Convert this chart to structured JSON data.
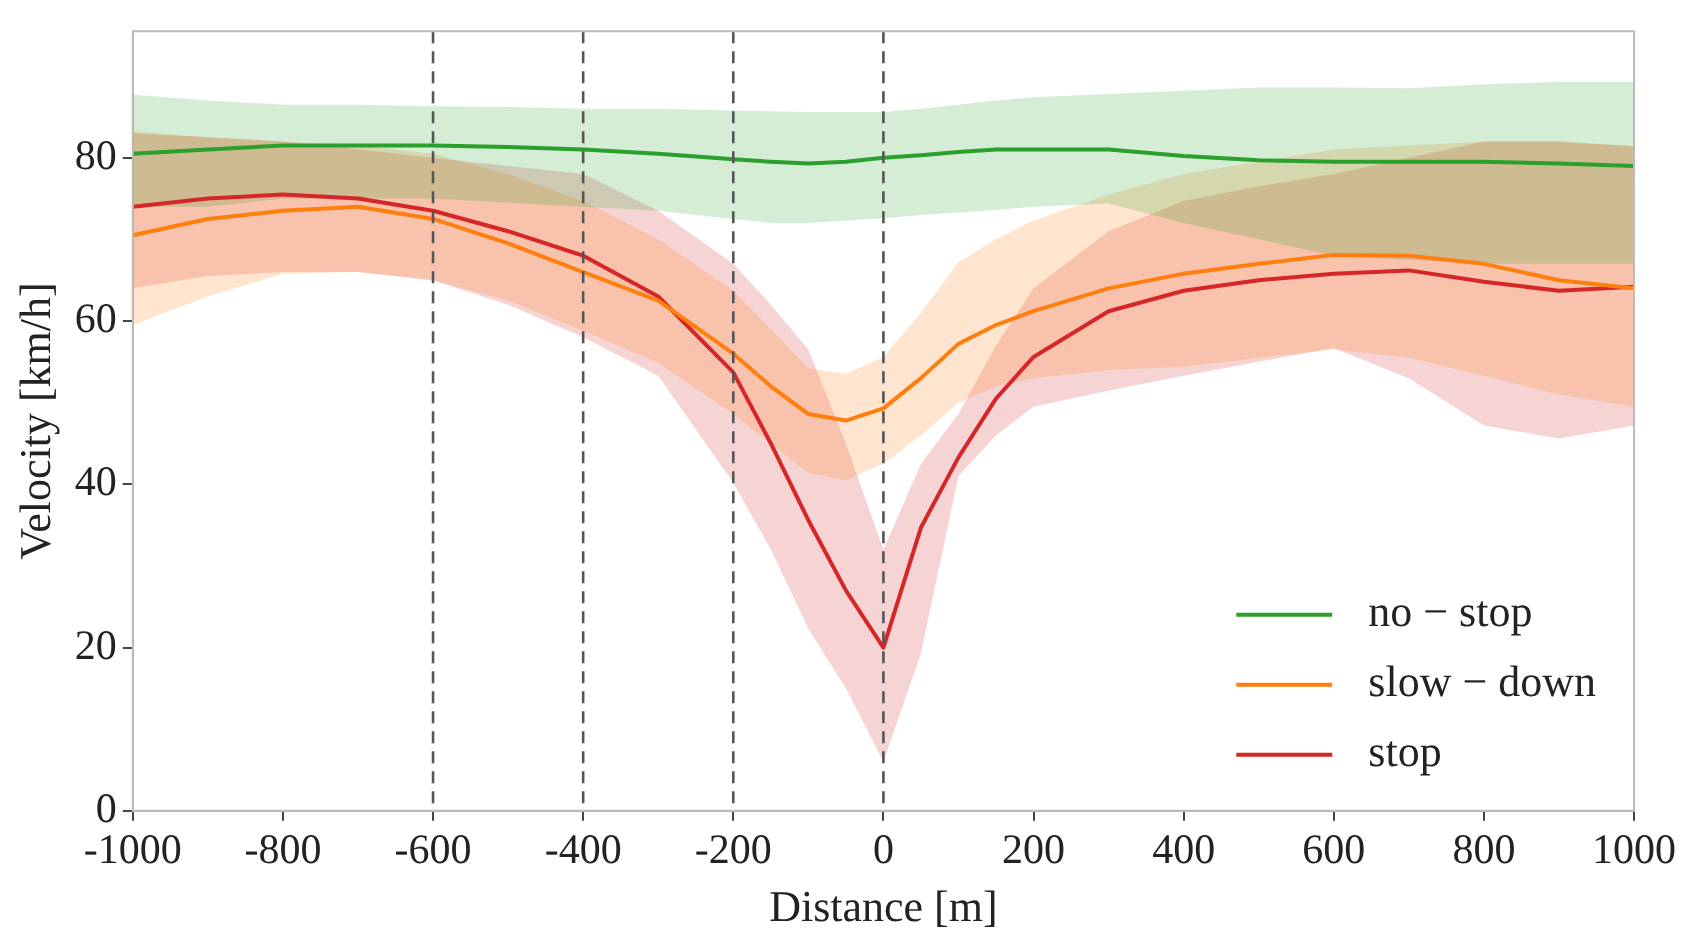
{
  "chart_data": {
    "type": "line",
    "xlabel": "Distance [m]",
    "ylabel": "Velocity [km/h]",
    "x": [
      -1000,
      -900,
      -800,
      -700,
      -600,
      -500,
      -400,
      -300,
      -200,
      -150,
      -100,
      -50,
      0,
      50,
      100,
      150,
      200,
      300,
      400,
      500,
      600,
      700,
      800,
      900,
      1000
    ],
    "xlim": [
      -1000,
      1000
    ],
    "xticks": [
      -1000,
      -800,
      -600,
      -400,
      -200,
      0,
      200,
      400,
      600,
      800,
      1000
    ],
    "ylim": [
      0,
      95.5
    ],
    "yticks": [
      0,
      20,
      40,
      60,
      80
    ],
    "grid": false,
    "legend": "bottom right",
    "marker": "none",
    "line_style": "solid",
    "series": [
      {
        "name": "no − stop",
        "color": "#2ca02c",
        "values": [
          80.5,
          81,
          81.5,
          81.5,
          81.5,
          81.3,
          81,
          80.5,
          79.8,
          79.5,
          79.3,
          79.5,
          80,
          80.3,
          80.7,
          81,
          81,
          81,
          80.2,
          79.7,
          79.5,
          79.5,
          79.5,
          79.3,
          79
        ],
        "lower": [
          74,
          74,
          75,
          75,
          75,
          74.5,
          74,
          73.5,
          72.5,
          72,
          72,
          72.3,
          72.6,
          73,
          73.3,
          73.6,
          74,
          74.4,
          72,
          70,
          68,
          67.5,
          67,
          67,
          67
        ],
        "upper": [
          87.7,
          87,
          86.5,
          86.5,
          86.3,
          86.2,
          86,
          86,
          85.8,
          85.7,
          85.6,
          85.6,
          85.6,
          86,
          86.5,
          87,
          87.4,
          87.8,
          88.2,
          88.6,
          88.6,
          88.5,
          89,
          89.3,
          89.3
        ]
      },
      {
        "name": "slow − down",
        "color": "#ff7f0e",
        "values": [
          70.5,
          72.5,
          73.5,
          74,
          72.5,
          69.5,
          66,
          62.5,
          56,
          52,
          48.6,
          47.8,
          49.3,
          53,
          57.2,
          59.5,
          61.2,
          64,
          65.8,
          67,
          68.1,
          68,
          67,
          65,
          64
        ],
        "lower": [
          59.5,
          63,
          65.8,
          66,
          65,
          62.5,
          58.8,
          54.9,
          48.6,
          45,
          41.4,
          40.5,
          42.5,
          46,
          50,
          52,
          53,
          54,
          54.4,
          55.5,
          56.5,
          55.5,
          53.3,
          51,
          49.5
        ],
        "upper": [
          83.2,
          82.5,
          82,
          81.5,
          80.5,
          78,
          74.7,
          70,
          63.7,
          59,
          54.2,
          53.5,
          55.6,
          61,
          67.2,
          70,
          72.3,
          75.5,
          78,
          79.5,
          81,
          81.5,
          82,
          82,
          81.4
        ]
      },
      {
        "name": "stop",
        "color": "#d62728",
        "values": [
          74,
          75,
          75.5,
          75,
          73.5,
          71,
          68,
          63,
          53.7,
          45,
          35.6,
          27,
          20,
          34.7,
          43.3,
          50.5,
          55.6,
          61.2,
          63.7,
          65,
          65.8,
          66.2,
          64.8,
          63.7,
          64.2
        ],
        "lower": [
          64,
          65.5,
          66,
          66,
          65,
          62,
          58,
          53.3,
          40.2,
          32,
          22.3,
          15,
          6,
          19.3,
          41,
          46,
          49.5,
          51.5,
          53.3,
          55,
          56.7,
          53,
          47.2,
          45.6,
          47.2
        ],
        "upper": [
          83,
          82.5,
          82,
          81,
          80,
          79,
          78,
          73.5,
          67,
          62,
          56.5,
          45,
          32,
          42.5,
          48.6,
          57,
          64,
          71,
          74.7,
          76.5,
          78,
          80,
          82,
          82,
          81.4
        ]
      }
    ],
    "ref_lines": [
      {
        "axis": "x",
        "value": -600,
        "color": "#555555",
        "line_style": "dashed"
      },
      {
        "axis": "x",
        "value": -400,
        "color": "#555555",
        "line_style": "dashed"
      },
      {
        "axis": "x",
        "value": -200,
        "color": "#555555",
        "line_style": "dashed"
      },
      {
        "axis": "x",
        "value": 0,
        "color": "#555555",
        "line_style": "dashed"
      }
    ]
  }
}
